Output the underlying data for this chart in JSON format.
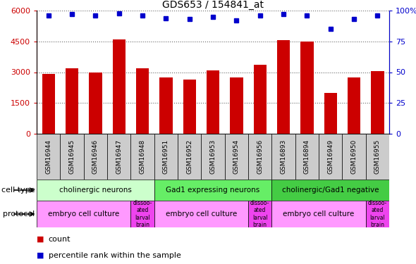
{
  "title": "GDS653 / 154841_at",
  "samples": [
    "GSM16944",
    "GSM16945",
    "GSM16946",
    "GSM16947",
    "GSM16948",
    "GSM16951",
    "GSM16952",
    "GSM16953",
    "GSM16954",
    "GSM16956",
    "GSM16893",
    "GSM16894",
    "GSM16949",
    "GSM16950",
    "GSM16955"
  ],
  "counts": [
    2900,
    3200,
    3000,
    4600,
    3200,
    2750,
    2650,
    3100,
    2750,
    3350,
    4550,
    4500,
    2000,
    2750,
    3050
  ],
  "percentiles": [
    96,
    97,
    96,
    98,
    96,
    94,
    93,
    95,
    92,
    96,
    97,
    96,
    85,
    93,
    96
  ],
  "bar_color": "#cc0000",
  "dot_color": "#0000cc",
  "ylim_left": [
    0,
    6000
  ],
  "ylim_right": [
    0,
    100
  ],
  "yticks_left": [
    0,
    1500,
    3000,
    4500,
    6000
  ],
  "yticks_right": [
    0,
    25,
    50,
    75,
    100
  ],
  "cell_type_groups": [
    {
      "label": "cholinergic neurons",
      "start": 0,
      "end": 5,
      "color": "#ccffcc"
    },
    {
      "label": "Gad1 expressing neurons",
      "start": 5,
      "end": 10,
      "color": "#66ee66"
    },
    {
      "label": "cholinergic/Gad1 negative",
      "start": 10,
      "end": 15,
      "color": "#44cc44"
    }
  ],
  "protocol_groups": [
    {
      "label": "embryo cell culture",
      "start": 0,
      "end": 4,
      "color": "#ff99ff"
    },
    {
      "label": "dissoo-\nated\nlarval\nbrain",
      "start": 4,
      "end": 5,
      "color": "#ee44ee"
    },
    {
      "label": "embryo cell culture",
      "start": 5,
      "end": 9,
      "color": "#ff99ff"
    },
    {
      "label": "dissoo-\nated\nlarval\nbrain",
      "start": 9,
      "end": 10,
      "color": "#ee44ee"
    },
    {
      "label": "embryo cell culture",
      "start": 10,
      "end": 14,
      "color": "#ff99ff"
    },
    {
      "label": "dissoo-\nated\nlarval\nbrain",
      "start": 14,
      "end": 15,
      "color": "#ee44ee"
    }
  ],
  "legend_count_color": "#cc0000",
  "legend_percentile_color": "#0000cc",
  "tick_color_left": "#cc0000",
  "tick_color_right": "#0000cc",
  "sample_box_color": "#cccccc",
  "background_color": "#ffffff",
  "grid_color": "#666666"
}
